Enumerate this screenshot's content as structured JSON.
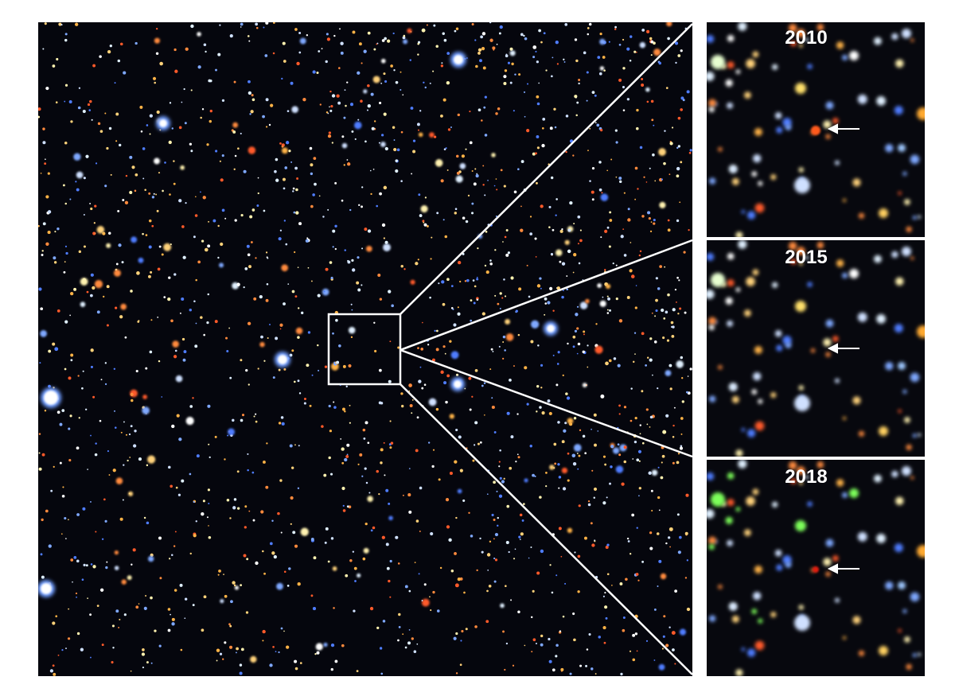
{
  "panels": [
    {
      "year": "2010"
    },
    {
      "year": "2015"
    },
    {
      "year": "2018"
    }
  ]
}
